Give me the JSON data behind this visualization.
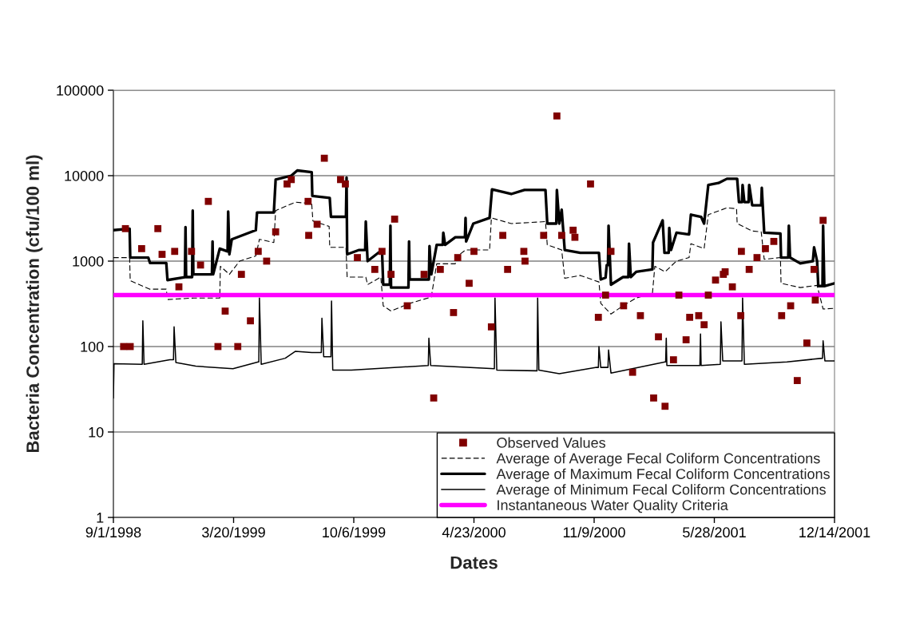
{
  "chart_data": {
    "type": "line",
    "xlabel": "Dates",
    "ylabel": "Bacteria Concentration (cfu/100 ml)",
    "xlim": [
      "1998-09-01",
      "2001-12-14"
    ],
    "xticks": [
      {
        "value": "1998-09-01",
        "label": "9/1/1998"
      },
      {
        "value": "1999-03-20",
        "label": "3/20/1999"
      },
      {
        "value": "1999-10-06",
        "label": "10/6/1999"
      },
      {
        "value": "2000-04-23",
        "label": "4/23/2000"
      },
      {
        "value": "2000-11-09",
        "label": "11/9/2000"
      },
      {
        "value": "2001-05-28",
        "label": "5/28/2001"
      },
      {
        "value": "2001-12-14",
        "label": "12/14/2001"
      }
    ],
    "ylim": [
      1,
      100000
    ],
    "yticks": [
      1,
      10,
      100,
      1000,
      10000,
      100000
    ],
    "log": "y",
    "grid": "y",
    "legend": "bottom right",
    "series": [
      {
        "name": "Observed Values",
        "type": "scatter",
        "marker": "square",
        "color": "#800000",
        "x": [
          "1998-09-18",
          "1998-09-21",
          "1998-09-29",
          "1998-10-18",
          "1998-11-14",
          "1998-11-21",
          "1998-12-12",
          "1998-12-19",
          "1999-01-09",
          "1999-01-24",
          "1999-02-06",
          "1999-02-22",
          "1999-03-06",
          "1999-03-27",
          "1999-04-02",
          "1999-04-17",
          "1999-04-30",
          "1999-05-14",
          "1999-05-29",
          "1999-06-17",
          "1999-06-24",
          "1999-07-22",
          "1999-07-23",
          "1999-08-06",
          "1999-08-18",
          "1999-09-14",
          "1999-09-22",
          "1999-10-12",
          "1999-11-10",
          "1999-11-22",
          "1999-12-07",
          "1999-12-13",
          "2000-01-03",
          "2000-01-31",
          "2000-02-16",
          "2000-02-27",
          "2000-03-20",
          "2000-03-27",
          "2000-04-15",
          "2000-04-23",
          "2000-05-22",
          "2000-06-10",
          "2000-06-18",
          "2000-07-15",
          "2000-07-17",
          "2000-08-17",
          "2000-09-08",
          "2000-09-16",
          "2000-10-05",
          "2000-10-08",
          "2000-11-03",
          "2000-11-16",
          "2000-11-28",
          "2000-12-07",
          "2000-12-28",
          "2001-01-12",
          "2001-01-25",
          "2001-02-16",
          "2001-02-24",
          "2001-03-07",
          "2001-03-21",
          "2001-03-30",
          "2001-04-11",
          "2001-04-17",
          "2001-05-02",
          "2001-05-11",
          "2001-05-18",
          "2001-05-30",
          "2001-06-12",
          "2001-06-15",
          "2001-06-27",
          "2001-07-11",
          "2001-07-12",
          "2001-07-25",
          "2001-08-07",
          "2001-08-21",
          "2001-09-04",
          "2001-09-17",
          "2001-10-02",
          "2001-10-13",
          "2001-10-29",
          "2001-11-10",
          "2001-11-12",
          "2001-11-25"
        ],
        "values": [
          100,
          2400,
          100,
          1400,
          2400,
          1200,
          1300,
          500,
          1300,
          900,
          5000,
          100,
          260,
          100,
          700,
          200,
          1300,
          1000,
          2200,
          8000,
          9000,
          5000,
          2000,
          2700,
          16000,
          9000,
          8000,
          1100,
          800,
          1300,
          700,
          3100,
          300,
          700,
          25,
          800,
          250,
          1100,
          550,
          1300,
          170,
          2000,
          800,
          1300,
          1000,
          2000,
          50000,
          2000,
          2300,
          1900,
          8000,
          220,
          400,
          1300,
          300,
          50,
          230,
          25,
          130,
          20,
          70,
          400,
          120,
          220,
          230,
          180,
          400,
          600,
          700,
          750,
          500,
          230,
          1300,
          800,
          1100,
          1400,
          1700,
          230,
          300,
          40,
          110,
          800,
          350,
          3000
        ]
      },
      {
        "name": "Average of Average Fecal Coliform Concentrations",
        "line_style": "dashed",
        "color": "#000000",
        "x": [
          "1998-09-01",
          "1998-09-28",
          "1998-09-29",
          "1998-10-31",
          "1998-11-28",
          "1998-11-30",
          "1999-01-13",
          "1999-02-25",
          "1999-02-26",
          "1999-03-13",
          "1999-03-30",
          "1999-04-26",
          "1999-05-02",
          "1999-05-26",
          "1999-05-29",
          "1999-07-01",
          "1999-07-28",
          "1999-07-30",
          "1999-08-26",
          "1999-08-27",
          "1999-09-23",
          "1999-09-25",
          "1999-10-26",
          "1999-10-29",
          "1999-11-20",
          "1999-11-24",
          "1999-12-07",
          "2000-01-07",
          "2000-02-12",
          "2000-02-21",
          "2000-03-23",
          "2000-03-27",
          "2000-04-09",
          "2000-05-19",
          "2000-05-22",
          "2000-06-24",
          "2000-08-20",
          "2000-08-23",
          "2000-09-16",
          "2000-09-21",
          "2000-10-17",
          "2000-11-17",
          "2000-11-20",
          "2000-12-07",
          "2000-12-27",
          "2001-01-18",
          "2001-02-14",
          "2001-02-18",
          "2001-03-07",
          "2001-03-26",
          "2001-04-16",
          "2001-04-19",
          "2001-05-11",
          "2001-05-18",
          "2001-06-18",
          "2001-07-04",
          "2001-07-05",
          "2001-07-30",
          "2001-08-14",
          "2001-08-19",
          "2001-09-15",
          "2001-09-16",
          "2001-10-18",
          "2001-11-15",
          "2001-11-25",
          "2001-12-14"
        ],
        "values": [
          1100,
          1100,
          590,
          470,
          470,
          355,
          370,
          370,
          870,
          700,
          1000,
          1150,
          1800,
          1650,
          3900,
          4900,
          4700,
          2950,
          2550,
          1450,
          1450,
          650,
          650,
          530,
          650,
          300,
          260,
          320,
          380,
          930,
          930,
          1150,
          1350,
          1350,
          3200,
          2750,
          2900,
          1550,
          1350,
          630,
          680,
          570,
          320,
          240,
          300,
          370,
          420,
          870,
          750,
          1000,
          1100,
          1600,
          1400,
          3500,
          4200,
          4100,
          2750,
          2250,
          2200,
          1050,
          1100,
          550,
          490,
          520,
          275,
          280
        ]
      },
      {
        "name": "Average of Maximum Fecal Coliform Concentrations",
        "line_style": "solid",
        "color": "#000000",
        "x": [
          "1998-09-01",
          "1998-09-28",
          "1998-09-29",
          "1998-10-29",
          "1998-11-01",
          "1998-11-28",
          "1998-11-30",
          "1998-12-29",
          "1998-12-30",
          "1998-12-31",
          "1999-01-10",
          "1999-01-11",
          "1999-01-12",
          "1999-02-12",
          "1999-02-13",
          "1999-02-14",
          "1999-02-25",
          "1999-03-10",
          "1999-03-11",
          "1999-03-13",
          "1999-03-17",
          "1999-04-26",
          "1999-04-28",
          "1999-05-26",
          "1999-05-29",
          "1999-06-24",
          "1999-07-04",
          "1999-07-28",
          "1999-07-29",
          "1999-08-27",
          "1999-08-29",
          "1999-09-23",
          "1999-09-24",
          "1999-09-25",
          "1999-10-15",
          "1999-10-25",
          "1999-10-26",
          "1999-10-29",
          "1999-11-22",
          "1999-11-24",
          "1999-12-05",
          "1999-12-06",
          "1999-12-07",
          "2000-01-05",
          "2000-01-06",
          "2000-01-07",
          "2000-02-08",
          "2000-02-09",
          "2000-02-12",
          "2000-02-21",
          "2000-03-02",
          "2000-03-03",
          "2000-03-06",
          "2000-03-23",
          "2000-04-08",
          "2000-04-09",
          "2000-04-10",
          "2000-04-22",
          "2000-05-19",
          "2000-05-23",
          "2000-06-24",
          "2000-07-16",
          "2000-08-20",
          "2000-08-23",
          "2000-09-07",
          "2000-09-08",
          "2000-09-12",
          "2000-09-16",
          "2000-09-21",
          "2000-10-17",
          "2000-11-17",
          "2000-11-20",
          "2000-11-28",
          "2000-11-30",
          "2000-12-02",
          "2000-12-03",
          "2000-12-07",
          "2000-12-27",
          "2001-01-05",
          "2001-01-06",
          "2001-01-09",
          "2001-01-18",
          "2001-02-14",
          "2001-02-15",
          "2001-03-03",
          "2001-03-06",
          "2001-03-13",
          "2001-03-14",
          "2001-03-17",
          "2001-03-26",
          "2001-04-16",
          "2001-04-19",
          "2001-05-06",
          "2001-05-11",
          "2001-05-18",
          "2001-06-04",
          "2001-06-18",
          "2001-07-05",
          "2001-07-08",
          "2001-07-13",
          "2001-07-14",
          "2001-07-17",
          "2001-07-24",
          "2001-07-25",
          "2001-07-30",
          "2001-08-14",
          "2001-08-15",
          "2001-08-19",
          "2001-09-15",
          "2001-09-16",
          "2001-09-28",
          "2001-09-29",
          "2001-10-01",
          "2001-10-18",
          "2001-11-08",
          "2001-11-10",
          "2001-11-15",
          "2001-11-17",
          "2001-11-24",
          "2001-11-25",
          "2001-11-27",
          "2001-12-14"
        ],
        "values": [
          2300,
          2400,
          1100,
          1100,
          950,
          950,
          600,
          650,
          2500,
          650,
          650,
          3900,
          700,
          700,
          1700,
          700,
          1400,
          1300,
          3800,
          1200,
          1800,
          2300,
          3700,
          3700,
          9000,
          10000,
          11500,
          11000,
          5800,
          5500,
          3300,
          3300,
          9500,
          1200,
          1350,
          1350,
          2900,
          1000,
          1350,
          530,
          530,
          2600,
          490,
          490,
          1700,
          610,
          610,
          1500,
          700,
          1550,
          1550,
          2150,
          1550,
          1900,
          1900,
          3200,
          1700,
          2750,
          3200,
          6900,
          6100,
          6800,
          6800,
          2750,
          2750,
          6800,
          2750,
          4000,
          1350,
          1250,
          1250,
          610,
          640,
          900,
          900,
          2600,
          530,
          650,
          650,
          1600,
          650,
          750,
          800,
          1650,
          3000,
          1250,
          1250,
          2450,
          1350,
          2150,
          2050,
          3500,
          3300,
          2750,
          7800,
          8200,
          9200,
          9200,
          4900,
          4900,
          7800,
          4900,
          4900,
          7800,
          4500,
          4500,
          7200,
          2150,
          2100,
          1100,
          1100,
          2600,
          1100,
          940,
          1000,
          1450,
          1000,
          510,
          510,
          2600,
          510,
          550
        ]
      },
      {
        "name": "Average of Minimum Fecal Coliform Concentrations",
        "line_style": "solid",
        "color": "#000000",
        "x": [
          "1998-09-01",
          "1998-09-02",
          "1998-10-19",
          "1998-10-20",
          "1998-10-22",
          "1998-12-04",
          "1998-12-10",
          "1998-12-11",
          "1998-12-14",
          "1999-01-16",
          "1999-03-19",
          "1999-04-30",
          "1999-05-01",
          "1999-05-02",
          "1999-05-05",
          "1999-06-14",
          "1999-07-01",
          "1999-07-28",
          "1999-08-13",
          "1999-08-14",
          "1999-08-17",
          "1999-08-29",
          "1999-08-30",
          "1999-09-01",
          "1999-10-02",
          "2000-02-07",
          "2000-02-08",
          "2000-02-11",
          "2000-05-27",
          "2000-05-28",
          "2000-05-31",
          "2000-08-06",
          "2000-08-07",
          "2000-08-09",
          "2000-09-12",
          "2000-11-13",
          "2000-11-16",
          "2000-11-17",
          "2000-11-20",
          "2000-12-02",
          "2000-12-03",
          "2000-12-07",
          "2001-03-07",
          "2001-03-08",
          "2001-03-09",
          "2001-03-10",
          "2001-05-04",
          "2001-05-05",
          "2001-05-06",
          "2001-06-07",
          "2001-06-08",
          "2001-06-11",
          "2001-07-13",
          "2001-07-14",
          "2001-07-17",
          "2001-09-26",
          "2001-11-24",
          "2001-11-25",
          "2001-11-28",
          "2001-12-14"
        ],
        "values": [
          25,
          63,
          62,
          200,
          62,
          70,
          70,
          170,
          65,
          59,
          55,
          66,
          66,
          370,
          62,
          73,
          88,
          85,
          85,
          215,
          76,
          76,
          340,
          53,
          53,
          60,
          125,
          60,
          55,
          370,
          53,
          52,
          370,
          53,
          48,
          57,
          57,
          100,
          57,
          57,
          91,
          49,
          66,
          66,
          125,
          60,
          60,
          140,
          60,
          62,
          195,
          68,
          68,
          370,
          62,
          66,
          73,
          117,
          68,
          68
        ]
      }
    ],
    "ref_lines": [
      {
        "axis": "y",
        "value": 400,
        "label": "Instantaneous Water Quality Criteria",
        "color": "#ff00ff"
      }
    ]
  }
}
